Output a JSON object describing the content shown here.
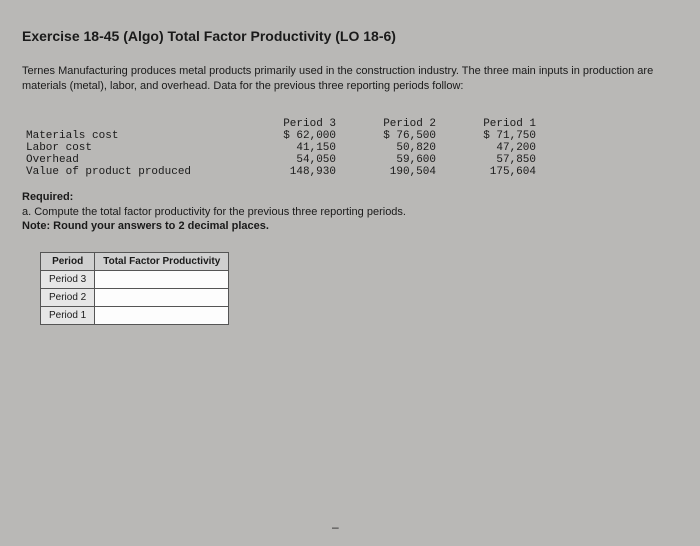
{
  "title": "Exercise 18-45 (Algo) Total Factor Productivity (LO 18-6)",
  "intro": "Ternes Manufacturing produces metal products primarily used in the construction industry. The three main inputs in production are materials (metal), labor, and overhead. Data for the previous three reporting periods follow:",
  "data_table": {
    "font_family": "Courier New",
    "font_size": 11,
    "text_color": "#1a1a1a",
    "row_labels": [
      "",
      "Materials cost",
      "Labor cost",
      "Overhead",
      "Value of product produced"
    ],
    "columns": [
      {
        "header": "Period 3",
        "values": [
          "$ 62,000",
          "41,150",
          "54,050",
          "148,930"
        ]
      },
      {
        "header": "Period 2",
        "values": [
          "$ 76,500",
          "50,820",
          "59,600",
          "190,504"
        ]
      },
      {
        "header": "Period 1",
        "values": [
          "$ 71,750",
          "47,200",
          "57,850",
          "175,604"
        ]
      }
    ]
  },
  "required": {
    "heading": "Required:",
    "item_a": "a. Compute the total factor productivity for the previous three reporting periods.",
    "note": "Note: Round your answers to 2 decimal places."
  },
  "answer_table": {
    "header_bg": "#cfcfcf",
    "label_bg": "#e6e6e6",
    "input_bg": "#fdfdfd",
    "border_color": "#555555",
    "headers": [
      "Period",
      "Total Factor Productivity"
    ],
    "rows": [
      {
        "label": "Period 3",
        "value": ""
      },
      {
        "label": "Period 2",
        "value": ""
      },
      {
        "label": "Period 1",
        "value": ""
      }
    ]
  },
  "page_background": "#b9b8b6",
  "pager_glyph": "–"
}
